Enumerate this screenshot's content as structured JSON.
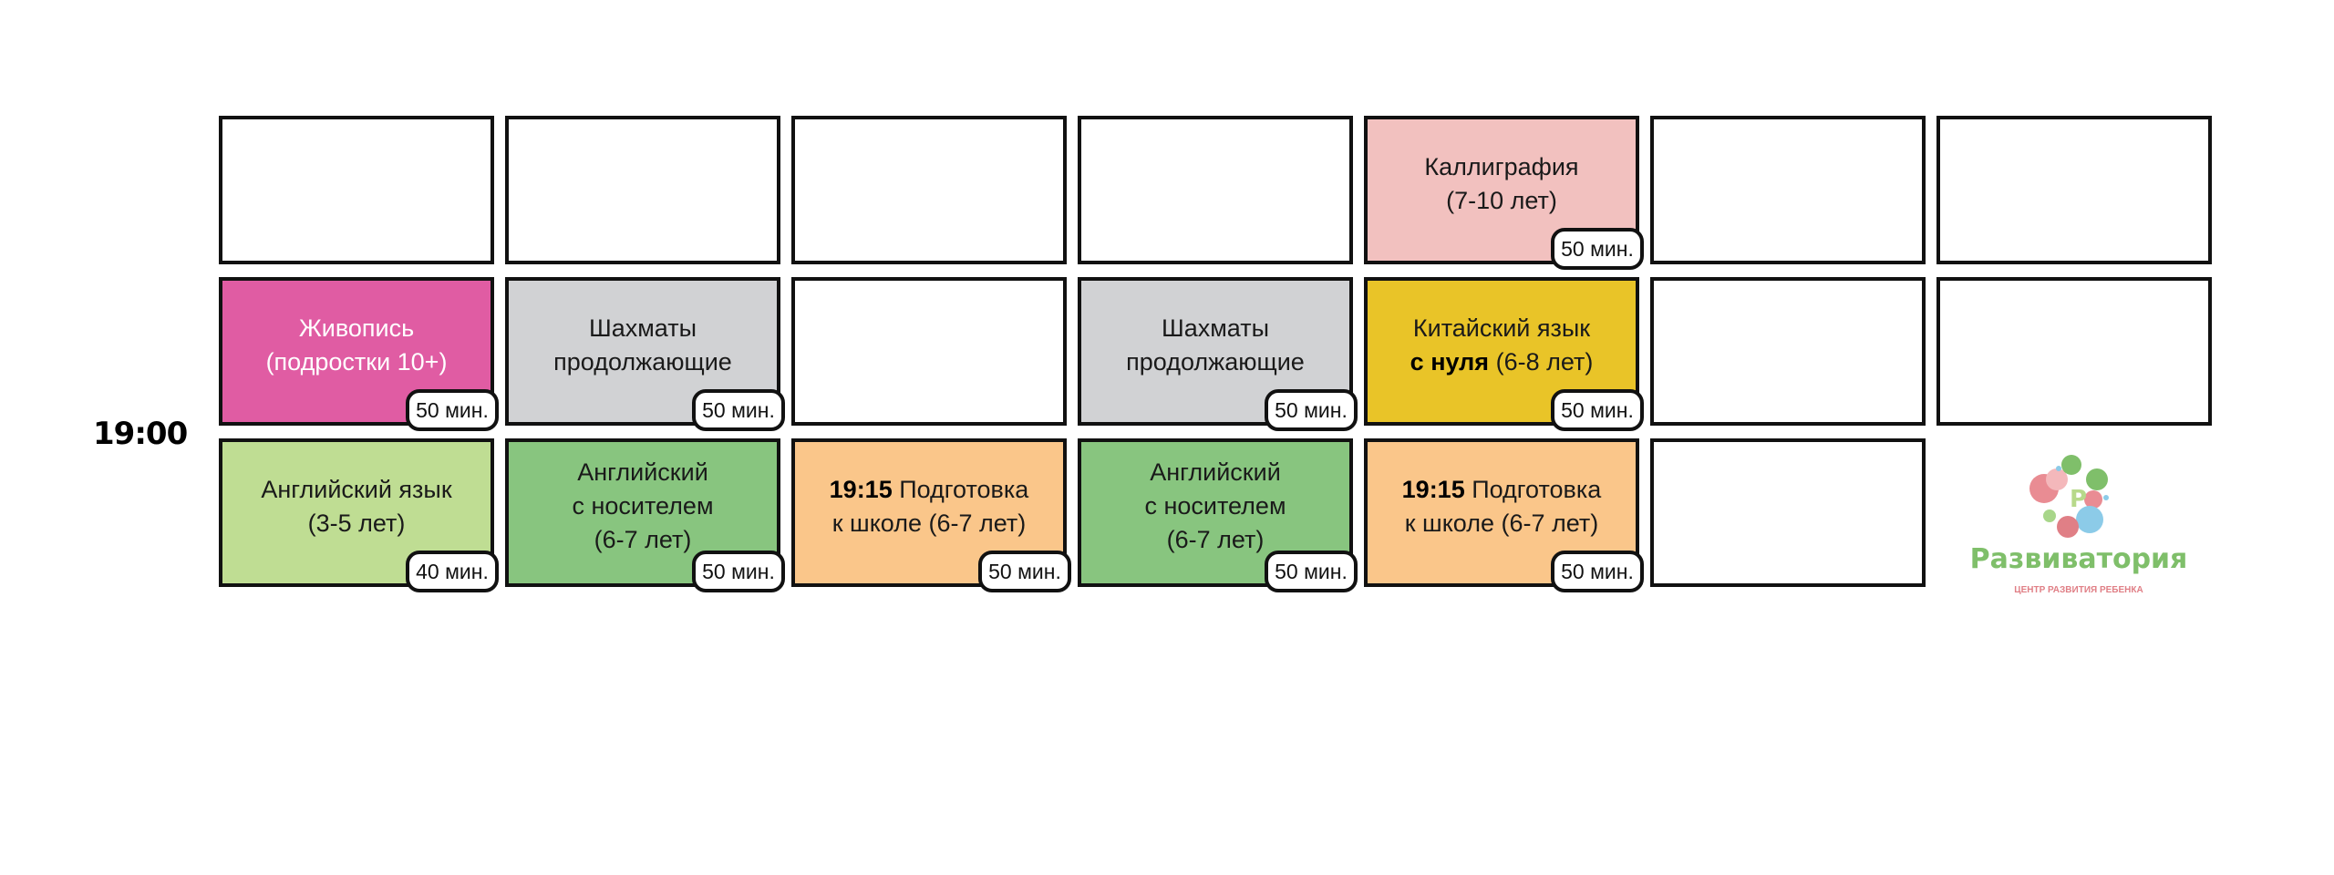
{
  "time_label": "19:00",
  "colors": {
    "painting": "#e05ca3",
    "chess": "#d1d2d4",
    "chinese": "#e9c428",
    "calligraphy": "#f2c1bf",
    "english_kids": "#bfdd93",
    "english_native": "#88c57f",
    "school_prep": "#fac68a",
    "empty": "#ffffff"
  },
  "rows": [
    [
      {
        "empty": true
      },
      {
        "empty": true
      },
      {
        "empty": true
      },
      {
        "empty": true
      },
      {
        "color": "calligraphy",
        "lines": [
          [
            {
              "t": "Каллиграфия"
            }
          ],
          [
            {
              "t": "(7-10 лет)"
            }
          ]
        ],
        "duration": "50 мин."
      },
      {
        "empty": true
      },
      {
        "empty": true
      }
    ],
    [
      {
        "color": "painting",
        "light": true,
        "lines": [
          [
            {
              "t": "Живопись"
            }
          ],
          [
            {
              "t": "(подростки 10+)"
            }
          ]
        ],
        "duration": "50 мин."
      },
      {
        "color": "chess",
        "lines": [
          [
            {
              "t": "Шахматы"
            }
          ],
          [
            {
              "t": "продолжающие"
            }
          ]
        ],
        "duration": "50 мин."
      },
      {
        "empty": true
      },
      {
        "color": "chess",
        "lines": [
          [
            {
              "t": "Шахматы"
            }
          ],
          [
            {
              "t": "продолжающие"
            }
          ]
        ],
        "duration": "50 мин."
      },
      {
        "color": "chinese",
        "lines": [
          [
            {
              "t": "Китайский язык"
            }
          ],
          [
            {
              "t": "с нуля",
              "b": true
            },
            {
              "t": " (6-8 лет)"
            }
          ]
        ],
        "duration": "50 мин."
      },
      {
        "empty": true
      },
      {
        "empty": true
      }
    ],
    [
      {
        "color": "english_kids",
        "lines": [
          [
            {
              "t": "Английский язык"
            }
          ],
          [
            {
              "t": "(3-5 лет)"
            }
          ]
        ],
        "duration": "40 мин."
      },
      {
        "color": "english_native",
        "lines": [
          [
            {
              "t": "Английский"
            }
          ],
          [
            {
              "t": "с носителем"
            }
          ],
          [
            {
              "t": "(6-7 лет)"
            }
          ]
        ],
        "duration": "50 мин."
      },
      {
        "color": "school_prep",
        "lines": [
          [
            {
              "t": "19:15",
              "b": true
            },
            {
              "t": " Подготовка"
            }
          ],
          [
            {
              "t": "к школе (6-7 лет)"
            }
          ]
        ],
        "duration": "50 мин."
      },
      {
        "color": "english_native",
        "lines": [
          [
            {
              "t": "Английский"
            }
          ],
          [
            {
              "t": "с носителем"
            }
          ],
          [
            {
              "t": "(6-7 лет)"
            }
          ]
        ],
        "duration": "50 мин."
      },
      {
        "color": "school_prep",
        "lines": [
          [
            {
              "t": "19:15",
              "b": true
            },
            {
              "t": " Подготовка"
            }
          ],
          [
            {
              "t": "к школе (6-7 лет)"
            }
          ]
        ],
        "duration": "50 мин."
      },
      {
        "empty": true
      },
      {
        "logo": true
      }
    ]
  ],
  "logo": {
    "title": "Развиватория",
    "subtitle": "ЦЕНТР РАЗВИТИЯ РЕБЕНКА"
  }
}
